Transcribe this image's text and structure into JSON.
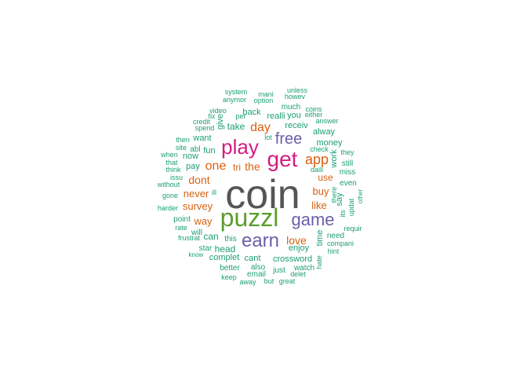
{
  "colors": {
    "gray": "#555555",
    "green": "#5a9e2e",
    "magenta": "#d21c80",
    "purple": "#6a5fa8",
    "orange": "#d9600f",
    "teal": "#1b9e77"
  },
  "words": [
    {
      "text": "coin",
      "color": "gray"
    },
    {
      "text": "puzzl",
      "color": "green"
    },
    {
      "text": "get",
      "color": "magenta"
    },
    {
      "text": "play",
      "color": "magenta"
    },
    {
      "text": "earn",
      "color": "purple"
    },
    {
      "text": "game",
      "color": "purple"
    },
    {
      "text": "free",
      "color": "purple"
    },
    {
      "text": "app",
      "color": "orange"
    },
    {
      "text": "one",
      "color": "orange"
    },
    {
      "text": "day",
      "color": "orange"
    },
    {
      "text": "the",
      "color": "orange"
    },
    {
      "text": "love",
      "color": "orange"
    },
    {
      "text": "dont",
      "color": "orange"
    },
    {
      "text": "never",
      "color": "orange"
    },
    {
      "text": "survey",
      "color": "orange"
    },
    {
      "text": "buy",
      "color": "orange"
    },
    {
      "text": "way",
      "color": "orange"
    },
    {
      "text": "like",
      "color": "orange"
    },
    {
      "text": "tri",
      "color": "orange"
    },
    {
      "text": "use",
      "color": "orange"
    },
    {
      "text": "money",
      "color": "teal"
    },
    {
      "text": "crossword",
      "color": "teal"
    },
    {
      "text": "take",
      "color": "teal"
    },
    {
      "text": "head",
      "color": "teal"
    },
    {
      "text": "can",
      "color": "teal"
    },
    {
      "text": "cant",
      "color": "teal"
    },
    {
      "text": "complet",
      "color": "teal"
    },
    {
      "text": "realli",
      "color": "teal"
    },
    {
      "text": "you",
      "color": "teal"
    },
    {
      "text": "receiv",
      "color": "teal"
    },
    {
      "text": "back",
      "color": "teal"
    },
    {
      "text": "much",
      "color": "teal"
    },
    {
      "text": "want",
      "color": "teal"
    },
    {
      "text": "fun",
      "color": "teal"
    },
    {
      "text": "abl",
      "color": "teal"
    },
    {
      "text": "now",
      "color": "teal"
    },
    {
      "text": "pay",
      "color": "teal"
    },
    {
      "text": "work",
      "color": "teal"
    },
    {
      "text": "time",
      "color": "teal"
    },
    {
      "text": "say",
      "color": "teal"
    },
    {
      "text": "enjoy",
      "color": "teal"
    },
    {
      "text": "alway",
      "color": "teal"
    },
    {
      "text": "give",
      "color": "teal"
    },
    {
      "text": "this",
      "color": "teal"
    },
    {
      "text": "will",
      "color": "teal"
    },
    {
      "text": "point",
      "color": "teal"
    },
    {
      "text": "still",
      "color": "teal"
    },
    {
      "text": "miss",
      "color": "teal"
    },
    {
      "text": "even",
      "color": "teal"
    },
    {
      "text": "watch",
      "color": "teal"
    },
    {
      "text": "also",
      "color": "teal"
    },
    {
      "text": "just",
      "color": "teal"
    },
    {
      "text": "email",
      "color": "teal"
    },
    {
      "text": "better",
      "color": "teal"
    },
    {
      "text": "need",
      "color": "teal"
    },
    {
      "text": "star",
      "color": "teal"
    },
    {
      "text": "keep",
      "color": "teal"
    },
    {
      "text": "hate",
      "color": "teal"
    },
    {
      "text": "there",
      "color": "teal"
    },
    {
      "text": "option",
      "color": "teal"
    },
    {
      "text": "anymor",
      "color": "teal"
    },
    {
      "text": "system",
      "color": "teal"
    },
    {
      "text": "mani",
      "color": "teal"
    },
    {
      "text": "unless",
      "color": "teal"
    },
    {
      "text": "howev",
      "color": "teal"
    },
    {
      "text": "coins",
      "color": "teal"
    },
    {
      "text": "either",
      "color": "teal"
    },
    {
      "text": "answer",
      "color": "teal"
    },
    {
      "text": "video",
      "color": "teal"
    },
    {
      "text": "fix",
      "color": "teal"
    },
    {
      "text": "per",
      "color": "teal"
    },
    {
      "text": "credit",
      "color": "teal"
    },
    {
      "text": "spend",
      "color": "teal"
    },
    {
      "text": "then",
      "color": "teal"
    },
    {
      "text": "site",
      "color": "teal"
    },
    {
      "text": "when",
      "color": "teal"
    },
    {
      "text": "that",
      "color": "teal"
    },
    {
      "text": "think",
      "color": "teal"
    },
    {
      "text": "issu",
      "color": "teal"
    },
    {
      "text": "without",
      "color": "teal"
    },
    {
      "text": "gone",
      "color": "teal"
    },
    {
      "text": "harder",
      "color": "teal"
    },
    {
      "text": "rate",
      "color": "teal"
    },
    {
      "text": "frustrat",
      "color": "teal"
    },
    {
      "text": "know",
      "color": "teal"
    },
    {
      "text": "ill",
      "color": "teal"
    },
    {
      "text": "lot",
      "color": "teal"
    },
    {
      "text": "check",
      "color": "teal"
    },
    {
      "text": "they",
      "color": "teal"
    },
    {
      "text": "daili",
      "color": "teal"
    },
    {
      "text": "its",
      "color": "teal"
    },
    {
      "text": "updat",
      "color": "teal"
    },
    {
      "text": "other",
      "color": "teal"
    },
    {
      "text": "requir",
      "color": "teal"
    },
    {
      "text": "compani",
      "color": "teal"
    },
    {
      "text": "hint",
      "color": "teal"
    },
    {
      "text": "delet",
      "color": "teal"
    },
    {
      "text": "great",
      "color": "teal"
    },
    {
      "text": "but",
      "color": "teal"
    },
    {
      "text": "away",
      "color": "teal"
    }
  ]
}
